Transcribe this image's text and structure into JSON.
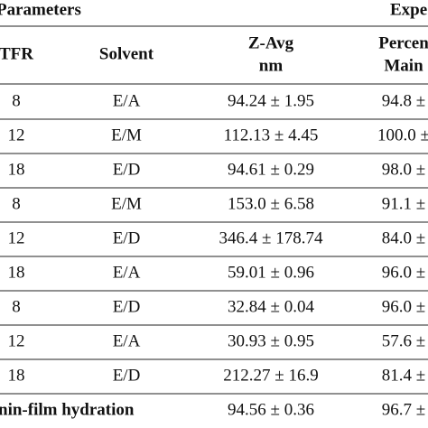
{
  "header": {
    "group_left": "Parameters",
    "group_right": "Expe"
  },
  "columns": [
    [
      "TFR"
    ],
    [
      "Solvent"
    ],
    [
      "Z-Avg",
      "nm"
    ],
    [
      "Percen",
      "Main"
    ]
  ],
  "rows": [
    [
      "8",
      "E/A",
      "94.24 ± 1.95",
      "94.8 ±"
    ],
    [
      "12",
      "E/M",
      "112.13 ± 4.45",
      "100.0 ±"
    ],
    [
      "18",
      "E/D",
      "94.61 ± 0.29",
      "98.0 ±"
    ],
    [
      "8",
      "E/M",
      "153.0 ± 6.58",
      "91.1 ±"
    ],
    [
      "12",
      "E/D",
      "346.4 ± 178.74",
      "84.0 ±"
    ],
    [
      "18",
      "E/A",
      "59.01 ± 0.96",
      "96.0 ±"
    ],
    [
      "8",
      "E/D",
      "32.84 ± 0.04",
      "96.0 ±"
    ],
    [
      "12",
      "E/A",
      "30.93 ± 0.95",
      "57.6 ±"
    ],
    [
      "18",
      "E/D",
      "212.27 ± 16.9",
      "81.4 ±"
    ]
  ],
  "last_row": [
    "nin-film hydration",
    "94.56 ± 0.36",
    "96.7 ±"
  ]
}
